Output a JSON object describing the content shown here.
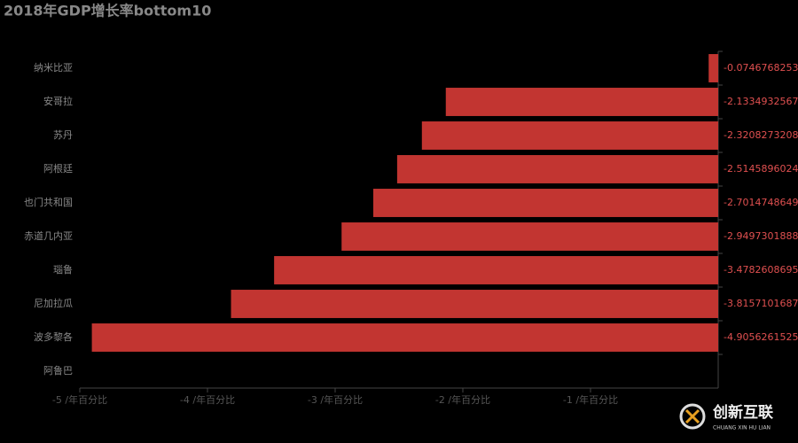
{
  "chart_data": {
    "type": "barh",
    "title": "2018年GDP增长率bottom10",
    "categories": [
      "纳米比亚",
      "安哥拉",
      "苏丹",
      "阿根廷",
      "也门共和国",
      "赤道几内亚",
      "瑙鲁",
      "尼加拉瓜",
      "波多黎各",
      "阿鲁巴"
    ],
    "values": [
      -0.0746768253,
      -2.1334932567,
      -2.3208273208,
      -2.5145896024,
      -2.7014748649,
      -2.9497301888,
      -3.4782608695,
      -3.8157101687,
      -4.9056261525,
      null
    ],
    "color": "#c23531",
    "xlim": [
      -5,
      0
    ],
    "xticks": [
      {
        "value": -5,
        "label": "-5 /年百分比"
      },
      {
        "value": -4,
        "label": "-4 /年百分比"
      },
      {
        "value": -3,
        "label": "-3 /年百分比"
      },
      {
        "value": -2,
        "label": "-2 /年百分比"
      },
      {
        "value": -1,
        "label": "-1 /年百分比"
      }
    ]
  },
  "watermark": {
    "text": "创新互联",
    "subtext": "CHUANG XIN HU LIAN"
  }
}
